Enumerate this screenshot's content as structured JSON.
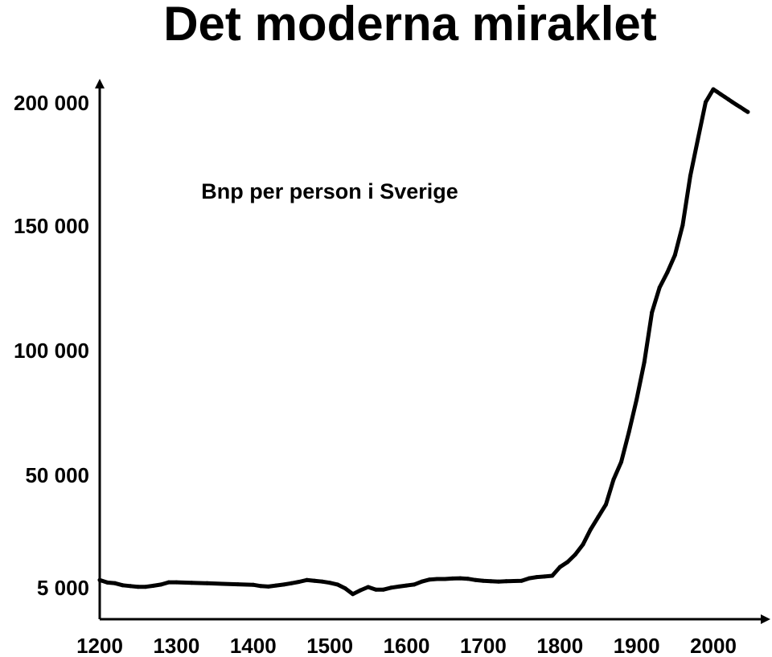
{
  "chart_data": {
    "type": "line",
    "title": "Det moderna miraklet",
    "annotation": "Bnp per person i Sverige",
    "xlabel": "",
    "ylabel": "",
    "x_ticks": [
      "1200",
      "1300",
      "1400",
      "1500",
      "1600",
      "1700",
      "1800",
      "1900",
      "2000"
    ],
    "y_ticks": [
      {
        "label": "200 000",
        "value": 200000
      },
      {
        "label": "150 000",
        "value": 150000
      },
      {
        "label": "100 000",
        "value": 100000
      },
      {
        "label": "50 000",
        "value": 50000
      },
      {
        "label": "5 000",
        "value": 5000
      }
    ],
    "xlim": [
      1200,
      2045
    ],
    "ylim": [
      0,
      205000
    ],
    "grid": false,
    "line_color": "#000000",
    "series": [
      {
        "x": [
          1200,
          1210,
          1220,
          1230,
          1240,
          1250,
          1260,
          1270,
          1280,
          1290,
          1300,
          1320,
          1340,
          1360,
          1380,
          1400,
          1410,
          1420,
          1430,
          1440,
          1450,
          1460,
          1470,
          1480,
          1490,
          1500,
          1510,
          1520,
          1530,
          1540,
          1550,
          1560,
          1570,
          1580,
          1590,
          1600,
          1610,
          1620,
          1630,
          1640,
          1650,
          1660,
          1670,
          1680,
          1690,
          1700,
          1710,
          1720,
          1730,
          1740,
          1750,
          1760,
          1770,
          1780,
          1790,
          1800,
          1810,
          1820,
          1830,
          1840,
          1850,
          1860,
          1870,
          1880,
          1890,
          1900,
          1910,
          1920,
          1930,
          1940,
          1950,
          1960,
          1970,
          1980,
          1990,
          2000,
          2005,
          2010,
          2015,
          2020,
          2025,
          2030,
          2035,
          2040,
          2045
        ],
        "y": [
          7800,
          6800,
          6500,
          5700,
          5400,
          5100,
          5100,
          5500,
          6000,
          6900,
          6900,
          6700,
          6500,
          6300,
          6100,
          5900,
          5400,
          5200,
          5600,
          6000,
          6500,
          7100,
          7800,
          7500,
          7200,
          6700,
          6000,
          4800,
          3900,
          4500,
          5000,
          4600,
          4600,
          4900,
          5200,
          5600,
          6000,
          7200,
          8000,
          8200,
          8200,
          8400,
          8500,
          8300,
          7800,
          7500,
          7300,
          7200,
          7300,
          7400,
          7500,
          8500,
          9000,
          9200,
          9500,
          13000,
          15000,
          18000,
          22000,
          28000,
          33000,
          38000,
          48000,
          55000,
          67000,
          80000,
          95000,
          115000,
          125000,
          131000,
          138000,
          150000,
          170000,
          185000,
          200000,
          205000,
          204000,
          203000,
          202000,
          201000,
          200000,
          199000,
          198000,
          197000,
          196000
        ]
      }
    ]
  }
}
